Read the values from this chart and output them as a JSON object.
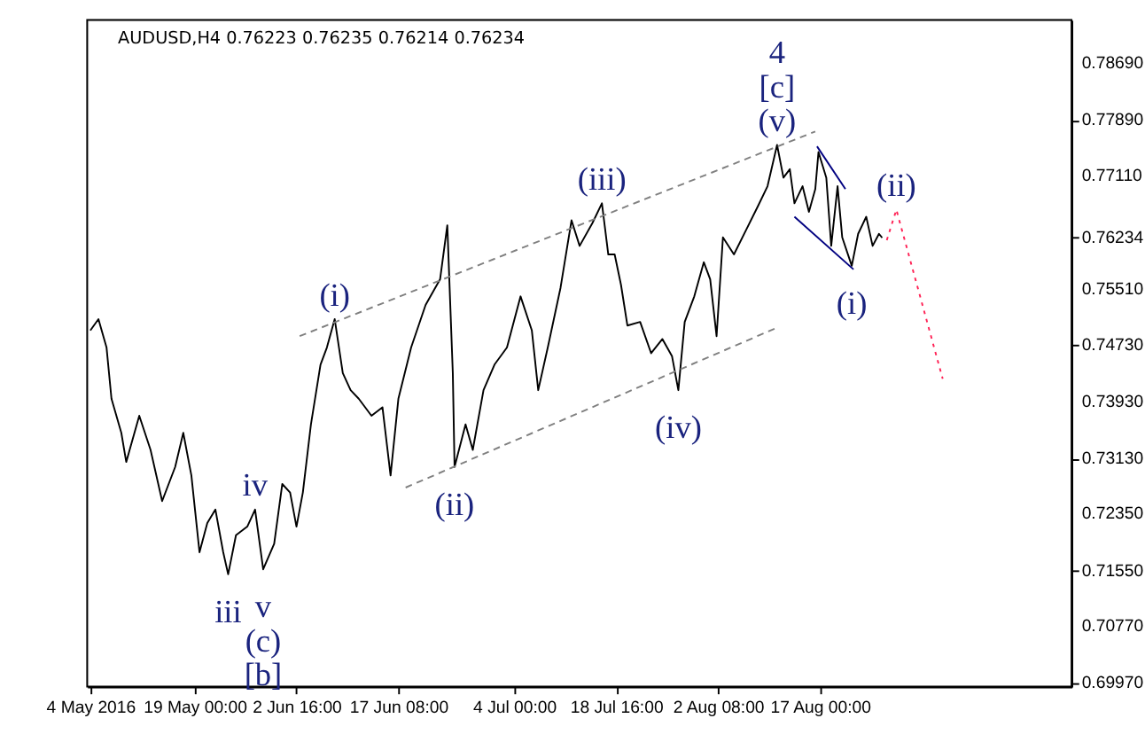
{
  "chart_data": {
    "type": "line",
    "title": "AUDUSD,H4  0.76223 0.76235 0.76214 0.76234",
    "xlim": [
      "2016-05-03T13:00",
      "2016-09-22T05:00"
    ],
    "ylim": [
      0.6992,
      0.793
    ],
    "xticks": [
      {
        "value": "2016-05-04T00:00",
        "label": "4 May 2016"
      },
      {
        "value": "2016-05-19T00:00",
        "label": "19 May 00:00"
      },
      {
        "value": "2016-06-02T16:00",
        "label": "2 Jun 16:00"
      },
      {
        "value": "2016-06-17T08:00",
        "label": "17 Jun 08:00"
      },
      {
        "value": "2016-07-04T00:00",
        "label": "4 Jul 00:00"
      },
      {
        "value": "2016-07-18T16:00",
        "label": "18 Jul 16:00"
      },
      {
        "value": "2016-08-02T08:00",
        "label": "2 Aug 08:00"
      },
      {
        "value": "2016-08-17T00:00",
        "label": "17 Aug 00:00"
      }
    ],
    "yticks": [
      {
        "value": 0.6997,
        "label": "0.69970"
      },
      {
        "value": 0.7077,
        "label": "0.70770"
      },
      {
        "value": 0.7155,
        "label": "0.71550"
      },
      {
        "value": 0.7235,
        "label": "0.72350"
      },
      {
        "value": 0.7313,
        "label": "0.73130"
      },
      {
        "value": 0.7393,
        "label": "0.73930"
      },
      {
        "value": 0.7473,
        "label": "0.74730"
      },
      {
        "value": 0.7551,
        "label": "0.75510"
      },
      {
        "value": 0.76234,
        "label": "0.76234"
      },
      {
        "value": 0.7711,
        "label": "0.77110"
      },
      {
        "value": 0.7789,
        "label": "0.77890"
      },
      {
        "value": 0.7869,
        "label": "0.78690"
      }
    ],
    "grid": false,
    "series": [
      {
        "color": "#000000",
        "line_style": "solid",
        "x": [
          "2016-05-04T00:00",
          "2016-05-05T04:00",
          "2016-05-06T08:00",
          "2016-05-07T01:00",
          "2016-05-08T11:00",
          "2016-05-09T04:00",
          "2016-05-11T01:00",
          "2016-05-12T16:00",
          "2016-05-14T08:00",
          "2016-05-16T05:00",
          "2016-05-17T09:00",
          "2016-05-18T13:00",
          "2016-05-19T17:00",
          "2016-05-20T20:00",
          "2016-05-22T00:00",
          "2016-05-23T03:00",
          "2016-05-23T20:00",
          "2016-05-24T23:00",
          "2016-05-26T14:00",
          "2016-05-27T17:00",
          "2016-05-28T21:00",
          "2016-05-30T11:00",
          "2016-05-31T15:00",
          "2016-06-01T18:00",
          "2016-06-02T16:00",
          "2016-06-03T14:00",
          "2016-06-04T18:00",
          "2016-06-06T03:00",
          "2016-06-07T01:00",
          "2016-06-08T04:00",
          "2016-06-09T08:00",
          "2016-06-10T11:00",
          "2016-06-11T15:00",
          "2016-06-13T11:00",
          "2016-06-15T01:00",
          "2016-06-16T05:00",
          "2016-06-17T08:00",
          "2016-06-19T04:00",
          "2016-06-21T06:00",
          "2016-06-23T08:00",
          "2016-06-24T09:00",
          "2016-06-25T04:00",
          "2016-06-25T10:00",
          "2016-06-27T00:00",
          "2016-06-28T01:00",
          "2016-06-29T14:00",
          "2016-07-01T04:00",
          "2016-07-02T23:00",
          "2016-07-04T22:00",
          "2016-07-06T13:00",
          "2016-07-07T11:00",
          "2016-07-08T20:00",
          "2016-07-10T16:00",
          "2016-07-12T06:00",
          "2016-07-13T10:00",
          "2016-07-15T06:00",
          "2016-07-16T15:00",
          "2016-07-17T13:00",
          "2016-07-18T11:00",
          "2016-07-19T09:00",
          "2016-07-20T07:00",
          "2016-07-22T03:00",
          "2016-07-23T17:00",
          "2016-07-25T08:00",
          "2016-07-26T17:00",
          "2016-07-27T15:00",
          "2016-07-28T13:00",
          "2016-07-29T22:00",
          "2016-07-31T07:00",
          "2016-08-01T05:00",
          "2016-08-02T03:00",
          "2016-08-03T01:00",
          "2016-08-04T15:00",
          "2016-08-06T11:00",
          "2016-08-08T02:00",
          "2016-08-09T11:00",
          "2016-08-10T20:00",
          "2016-08-11T18:00",
          "2016-08-12T16:00",
          "2016-08-13T08:00",
          "2016-08-14T12:00",
          "2016-08-15T10:00",
          "2016-08-16T08:00",
          "2016-08-16T19:00",
          "2016-08-17T22:00",
          "2016-08-18T15:00",
          "2016-08-19T13:00",
          "2016-08-20T05:00",
          "2016-08-21T14:00",
          "2016-08-22T12:00",
          "2016-08-23T16:00",
          "2016-08-24T14:00",
          "2016-08-25T12:00",
          "2016-08-25T23:00"
        ],
        "values": [
          0.7493,
          0.7509,
          0.7469,
          0.7397,
          0.7349,
          0.7308,
          0.7373,
          0.7325,
          0.7253,
          0.7301,
          0.7349,
          0.7289,
          0.7181,
          0.7222,
          0.7241,
          0.7181,
          0.715,
          0.7205,
          0.7217,
          0.7241,
          0.7157,
          0.7193,
          0.7277,
          0.7265,
          0.7217,
          0.7265,
          0.7361,
          0.7445,
          0.7469,
          0.7509,
          0.7433,
          0.7409,
          0.7397,
          0.7373,
          0.7385,
          0.7289,
          0.7397,
          0.7469,
          0.7529,
          0.7565,
          0.7641,
          0.7433,
          0.7301,
          0.7361,
          0.7325,
          0.7409,
          0.7445,
          0.7469,
          0.7541,
          0.7493,
          0.7409,
          0.7469,
          0.7553,
          0.7648,
          0.7612,
          0.7644,
          0.7672,
          0.76,
          0.76,
          0.7557,
          0.75,
          0.7505,
          0.7461,
          0.7481,
          0.7457,
          0.7409,
          0.7505,
          0.7541,
          0.7589,
          0.7565,
          0.7485,
          0.7624,
          0.76,
          0.7636,
          0.7668,
          0.7696,
          0.7754,
          0.7708,
          0.772,
          0.7672,
          0.7696,
          0.766,
          0.7692,
          0.7744,
          0.7708,
          0.7612,
          0.7696,
          0.7624,
          0.7584,
          0.7629,
          0.7653,
          0.7612,
          0.7629,
          0.76234
        ]
      },
      {
        "color": "#808080",
        "line_style": "dashed",
        "x": [
          "2016-06-03T03:00",
          "2016-08-16T08:00"
        ],
        "values": [
          0.7485,
          0.7773
        ]
      },
      {
        "color": "#808080",
        "line_style": "dashed",
        "x": [
          "2016-06-18T09:00",
          "2016-08-10T20:00"
        ],
        "values": [
          0.7272,
          0.7497
        ]
      },
      {
        "color": "#000080",
        "line_style": "solid",
        "x": [
          "2016-08-16T14:00",
          "2016-08-20T16:00"
        ],
        "values": [
          0.7752,
          0.7692
        ]
      },
      {
        "color": "#000080",
        "line_style": "solid",
        "x": [
          "2016-08-13T08:00",
          "2016-08-21T20:00"
        ],
        "values": [
          0.7653,
          0.7579
        ]
      },
      {
        "color": "#ff2255",
        "line_style": "dotted",
        "x": [
          "2016-08-26T15:00",
          "2016-08-28T00:00",
          "2016-09-03T16:00"
        ],
        "values": [
          0.762,
          0.7663,
          0.7425
        ]
      }
    ],
    "annotations": [
      {
        "text": "4",
        "x": "2016-08-10T20:00",
        "y": 0.7754
      },
      {
        "text": "[c]",
        "x": "2016-08-10T20:00",
        "y": 0.7754
      },
      {
        "text": "(v)",
        "x": "2016-08-10T20:00",
        "y": 0.7754
      },
      {
        "text": "(iii)",
        "x": "2016-07-16T15:00",
        "y": 0.7672
      },
      {
        "text": "(i)",
        "x": "2016-06-08T04:00",
        "y": 0.7509
      },
      {
        "text": "(ii)",
        "x": "2016-08-28T00:00",
        "y": 0.7663
      },
      {
        "text": "(i)",
        "x": "2016-08-21T14:00",
        "y": 0.7584
      },
      {
        "text": "(ii)",
        "x": "2016-06-25T10:00",
        "y": 0.7301
      },
      {
        "text": "(iv)",
        "x": "2016-07-27T15:00",
        "y": 0.7409
      },
      {
        "text": "iv",
        "x": "2016-05-27T17:00",
        "y": 0.7241
      },
      {
        "text": "iii",
        "x": "2016-05-23T20:00",
        "y": 0.715
      },
      {
        "text": "v",
        "x": "2016-05-28T21:00",
        "y": 0.7157
      },
      {
        "text": "(c)",
        "x": "2016-05-28T21:00",
        "y": 0.7157
      },
      {
        "text": "[b]",
        "x": "2016-05-28T21:00",
        "y": 0.7157
      }
    ]
  }
}
